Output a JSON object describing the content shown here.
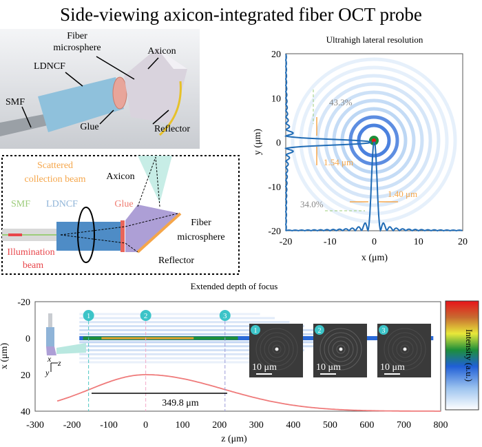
{
  "title": "Side-viewing axicon-integrated fiber OCT probe",
  "render3d": {
    "labels": {
      "fiber": "Fiber",
      "microsphere": "microsphere",
      "axicon": "Axicon",
      "ldncf": "LDNCF",
      "smf": "SMF",
      "glue": "Glue",
      "reflector": "Reflector"
    }
  },
  "schematic": {
    "labels": {
      "scattered": "Scattered",
      "collection": "collection beam",
      "axicon": "Axicon",
      "smf": "SMF",
      "ldncf": "LDNCF",
      "glue": "Glue",
      "fiber": "Fiber",
      "microsphere": "microsphere",
      "illumination": "Illumination",
      "beam": "beam",
      "reflector": "Reflector"
    },
    "colors": {
      "smf": "#9ccc7a",
      "ldncf": "#8fb4d8",
      "glue": "#ef7a6f",
      "illumination": "#e8454a",
      "scattered": "#f5a64a"
    }
  },
  "lateral": {
    "title": "Ultrahigh lateral resolution",
    "xlabel": "x (μm)",
    "ylabel": "y (μm)",
    "xticks": [
      "-20",
      "-10",
      "0",
      "10",
      "20"
    ],
    "yticks": [
      "20",
      "10",
      "0",
      "-10",
      "-20"
    ],
    "annotations": {
      "sidelobe_y": "43.3%",
      "fwhm_y": "1.54 μm",
      "fwhm_x": "1.40 μm",
      "sidelobe_x": "34.0%"
    },
    "xlim": [
      -20,
      20
    ],
    "ylim": [
      -20,
      20
    ],
    "colormap": "jet-white"
  },
  "depth": {
    "title": "Extended depth of focus",
    "xlabel": "z (μm)",
    "ylabel": "x (μm)",
    "xticks": [
      "-300",
      "-200",
      "-100",
      "0",
      "100",
      "200",
      "300",
      "400",
      "500",
      "600",
      "700",
      "800"
    ],
    "yticks": [
      "-20",
      "0",
      "20",
      "40"
    ],
    "markers": [
      "1",
      "2",
      "3"
    ],
    "marker_z": [
      -155,
      0,
      215
    ],
    "dof": "349.8 μm",
    "colorbar_label": "Intensity (a.u.)",
    "inset_scale": "10 μm",
    "axes_labels": {
      "x": "x",
      "z": "z",
      "y": "y"
    },
    "xlim": [
      -300,
      800
    ],
    "ylim": [
      -20,
      40
    ]
  }
}
